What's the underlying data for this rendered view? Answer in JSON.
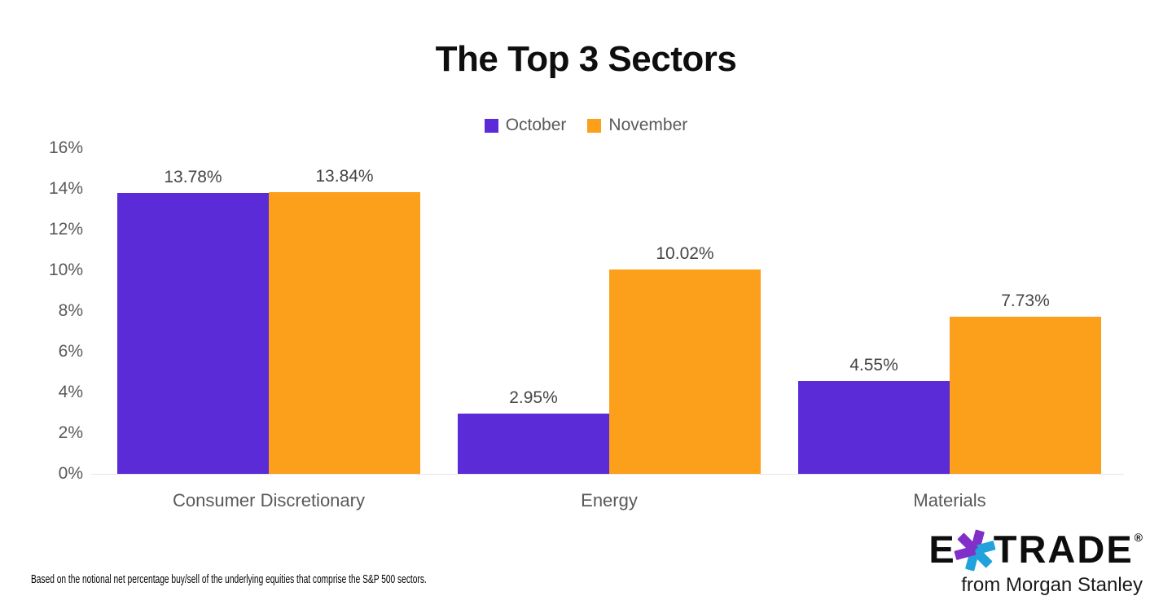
{
  "chart_data": {
    "type": "bar",
    "title": "The Top 3 Sectors",
    "categories": [
      "Consumer Discretionary",
      "Energy",
      "Materials"
    ],
    "series": [
      {
        "name": "October",
        "color": "#5A2BD6",
        "values": [
          13.78,
          2.95,
          4.55
        ]
      },
      {
        "name": "November",
        "color": "#FCA01C",
        "values": [
          13.84,
          10.02,
          7.73
        ]
      }
    ],
    "data_labels": {
      "October": [
        "13.78%",
        "2.95%",
        "4.55%"
      ],
      "November": [
        "13.84%",
        "10.02%",
        "7.73%"
      ]
    },
    "y_ticks": [
      16,
      14,
      12,
      10,
      8,
      6,
      4,
      2,
      0
    ],
    "y_tick_labels": [
      "16%",
      "14%",
      "12%",
      "10%",
      "8%",
      "6%",
      "4%",
      "2%",
      "0%"
    ],
    "ylim": [
      0,
      16
    ],
    "grid": false,
    "legend_position": "top-center",
    "text_colors": {
      "axis": "#595959",
      "data_label": "#454545",
      "title": "#0e0e0e"
    }
  },
  "footnote": "Based on the notional net percentage buy/sell of the underlying equities that comprise the S&P 500 sectors.",
  "logo": {
    "part1": "E",
    "part2": "TRADE",
    "registered": "®",
    "tagline": "from Morgan Stanley",
    "asterisk_purple": "#8030C8",
    "asterisk_blue": "#22A2DC"
  }
}
